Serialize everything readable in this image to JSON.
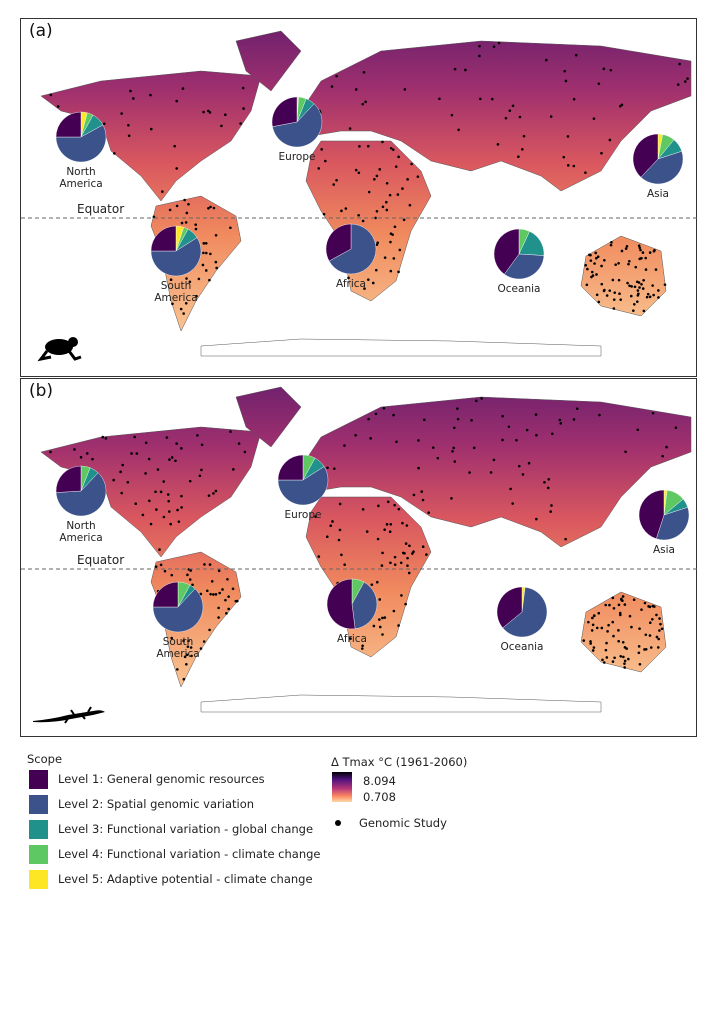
{
  "panels": [
    {
      "label": "(a)",
      "taxon": "frog"
    },
    {
      "label": "(b)",
      "taxon": "lizard"
    }
  ],
  "equator_label": "Equator",
  "colors": {
    "level1": "#440154",
    "level2": "#3b528b",
    "level3": "#21918c",
    "level4": "#5ec962",
    "level5": "#fde725"
  },
  "legend": {
    "scope_title": "Scope",
    "levels": [
      "Level 1: General genomic resources",
      "Level 2: Spatial genomic variation",
      "Level 3: Functional variation - global change",
      "Level 4: Functional variation - climate change",
      "Level 5: Adaptive potential - climate change"
    ],
    "tmax_title": "Δ Tmax °C (1961-2060)",
    "tmax_max": "8.094",
    "tmax_min": "0.708",
    "study_label": "Genomic Study"
  },
  "chart_data": [
    {
      "type": "pie",
      "panel": "(a)",
      "series_order": [
        "Level 1",
        "Level 2",
        "Level 3",
        "Level 4",
        "Level 5"
      ],
      "regions": [
        {
          "name": "North America",
          "values": [
            25,
            58,
            9,
            4,
            4
          ]
        },
        {
          "name": "Europe",
          "values": [
            28,
            60,
            6,
            5,
            1
          ]
        },
        {
          "name": "Asia",
          "values": [
            38,
            42,
            9,
            8,
            3
          ]
        },
        {
          "name": "South America",
          "values": [
            25,
            59,
            8,
            3,
            5
          ]
        },
        {
          "name": "Africa",
          "values": [
            33,
            67,
            0,
            0,
            0
          ]
        },
        {
          "name": "Oceania",
          "values": [
            40,
            34,
            19,
            7,
            0
          ]
        }
      ]
    },
    {
      "type": "pie",
      "panel": "(b)",
      "series_order": [
        "Level 1",
        "Level 2",
        "Level 3",
        "Level 4",
        "Level 5"
      ],
      "regions": [
        {
          "name": "North America",
          "values": [
            26,
            62,
            6,
            6,
            0
          ]
        },
        {
          "name": "Europe",
          "values": [
            25,
            59,
            8,
            8,
            0
          ]
        },
        {
          "name": "Asia",
          "values": [
            45,
            35,
            6,
            12,
            2
          ]
        },
        {
          "name": "South America",
          "values": [
            25,
            63,
            4,
            8,
            0
          ]
        },
        {
          "name": "Africa",
          "values": [
            52,
            40,
            0,
            8,
            0
          ]
        },
        {
          "name": "Oceania",
          "values": [
            36,
            62,
            0,
            0,
            2
          ]
        }
      ]
    }
  ]
}
